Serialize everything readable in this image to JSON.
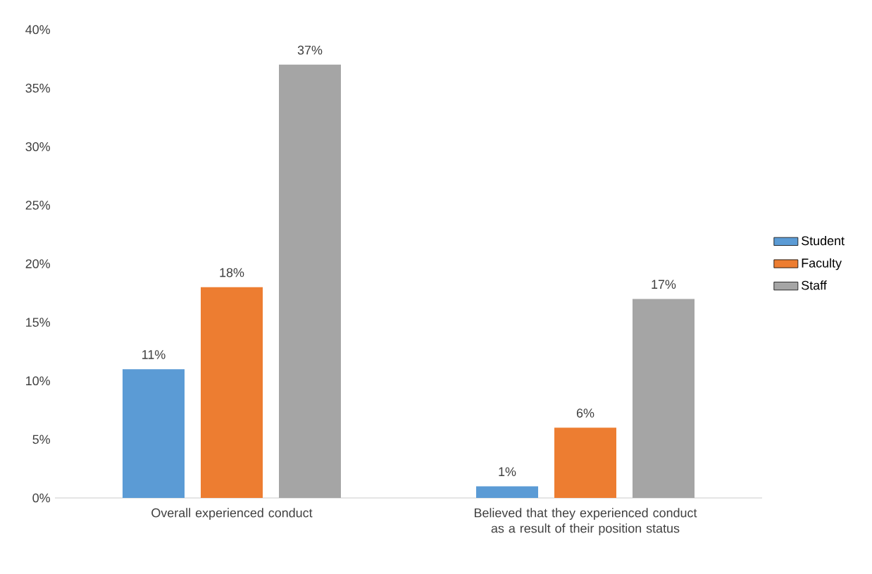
{
  "chart_data": {
    "type": "bar",
    "categories": [
      "Overall experienced conduct",
      "Believed that they experienced conduct as a result of their position status"
    ],
    "series": [
      {
        "name": "Student",
        "color": "#5b9bd5",
        "values": [
          11,
          1
        ],
        "value_labels": [
          "11%",
          "1%"
        ]
      },
      {
        "name": "Faculty",
        "color": "#ed7d31",
        "values": [
          18,
          6
        ],
        "value_labels": [
          "18%",
          "6%"
        ]
      },
      {
        "name": "Staff",
        "color": "#a5a5a5",
        "values": [
          37,
          17
        ],
        "value_labels": [
          "37%",
          "17%"
        ]
      }
    ],
    "ylim": [
      0,
      40
    ],
    "yticks": [
      {
        "value": 0,
        "label": "0%"
      },
      {
        "value": 5,
        "label": "5%"
      },
      {
        "value": 10,
        "label": "10%"
      },
      {
        "value": 15,
        "label": "15%"
      },
      {
        "value": 20,
        "label": "20%"
      },
      {
        "value": 25,
        "label": "25%"
      },
      {
        "value": 30,
        "label": "30%"
      },
      {
        "value": 35,
        "label": "35%"
      },
      {
        "value": 40,
        "label": "40%"
      }
    ],
    "grid": false,
    "legend": "right"
  }
}
